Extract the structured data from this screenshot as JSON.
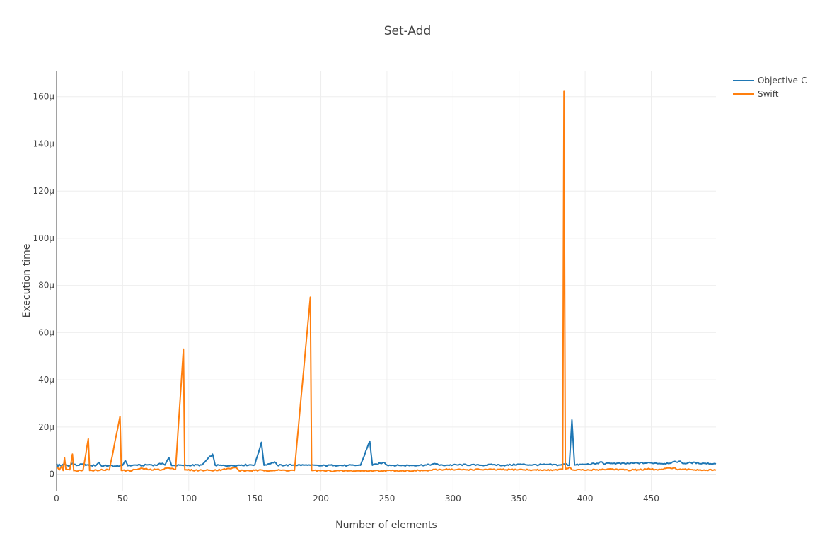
{
  "chart_data": {
    "type": "line",
    "title": "Set-Add",
    "xlabel": "Number of elements",
    "ylabel": "Execution time",
    "xlim": [
      0,
      499
    ],
    "ylim": [
      -7,
      171
    ],
    "x_ticks": [
      0,
      50,
      100,
      150,
      200,
      250,
      300,
      350,
      400,
      450
    ],
    "x_tick_labels": [
      "0",
      "50",
      "100",
      "150",
      "200",
      "250",
      "300",
      "350",
      "400",
      "450"
    ],
    "y_ticks": [
      0,
      20,
      40,
      60,
      80,
      100,
      120,
      140,
      160
    ],
    "y_tick_labels": [
      "0",
      "20µ",
      "40µ",
      "60µ",
      "80µ",
      "100µ",
      "120µ",
      "140µ",
      "160µ"
    ],
    "y_unit": "µ",
    "grid": true,
    "legend_position": "top-right",
    "series": [
      {
        "name": "Objective-C",
        "color": "#1f77b4",
        "baseline": 3.8,
        "points": [
          [
            0,
            4.5
          ],
          [
            1,
            3.4
          ],
          [
            2,
            4.2
          ],
          [
            3,
            3.6
          ],
          [
            6,
            4.2
          ],
          [
            9,
            3.5
          ],
          [
            12,
            4.6
          ],
          [
            15,
            3.7
          ],
          [
            20,
            4.3
          ],
          [
            25,
            3.6
          ],
          [
            30,
            3.8
          ],
          [
            32,
            5.0
          ],
          [
            34,
            3.5
          ],
          [
            40,
            3.7
          ],
          [
            45,
            3.4
          ],
          [
            50,
            3.8
          ],
          [
            52,
            5.8
          ],
          [
            54,
            3.6
          ],
          [
            60,
            3.9
          ],
          [
            65,
            3.7
          ],
          [
            70,
            4.1
          ],
          [
            75,
            3.8
          ],
          [
            80,
            4.6
          ],
          [
            82,
            3.9
          ],
          [
            85,
            7.0
          ],
          [
            87,
            3.7
          ],
          [
            95,
            3.8
          ],
          [
            100,
            3.8
          ],
          [
            110,
            3.9
          ],
          [
            118,
            8.5
          ],
          [
            120,
            3.8
          ],
          [
            130,
            3.6
          ],
          [
            140,
            3.9
          ],
          [
            150,
            4.0
          ],
          [
            155,
            13.5
          ],
          [
            157,
            3.8
          ],
          [
            165,
            5.2
          ],
          [
            167,
            3.8
          ],
          [
            180,
            3.9
          ],
          [
            190,
            3.8
          ],
          [
            200,
            3.6
          ],
          [
            210,
            3.8
          ],
          [
            220,
            3.7
          ],
          [
            230,
            3.8
          ],
          [
            237,
            14.0
          ],
          [
            239,
            3.8
          ],
          [
            248,
            5.0
          ],
          [
            250,
            3.9
          ],
          [
            260,
            3.7
          ],
          [
            270,
            3.8
          ],
          [
            280,
            3.9
          ],
          [
            288,
            4.4
          ],
          [
            290,
            3.8
          ],
          [
            300,
            3.9
          ],
          [
            310,
            4.0
          ],
          [
            320,
            3.8
          ],
          [
            330,
            4.0
          ],
          [
            340,
            3.8
          ],
          [
            350,
            4.2
          ],
          [
            360,
            3.9
          ],
          [
            370,
            4.1
          ],
          [
            380,
            3.9
          ],
          [
            385,
            4.3
          ],
          [
            388,
            3.8
          ],
          [
            390,
            23.0
          ],
          [
            392,
            3.9
          ],
          [
            400,
            4.2
          ],
          [
            410,
            4.5
          ],
          [
            412,
            5.3
          ],
          [
            414,
            4.4
          ],
          [
            420,
            4.6
          ],
          [
            430,
            4.5
          ],
          [
            440,
            4.7
          ],
          [
            450,
            4.8
          ],
          [
            460,
            4.5
          ],
          [
            472,
            5.5
          ],
          [
            474,
            4.5
          ],
          [
            480,
            4.9
          ],
          [
            490,
            4.6
          ],
          [
            499,
            4.4
          ]
        ]
      },
      {
        "name": "Swift",
        "color": "#ff7f0e",
        "baseline": 1.5,
        "points": [
          [
            0,
            3.0
          ],
          [
            2,
            1.8
          ],
          [
            4,
            3.5
          ],
          [
            5,
            1.6
          ],
          [
            6,
            7.0
          ],
          [
            7,
            2.2
          ],
          [
            10,
            1.9
          ],
          [
            12,
            8.5
          ],
          [
            13,
            1.5
          ],
          [
            20,
            1.7
          ],
          [
            24,
            15.0
          ],
          [
            25,
            1.6
          ],
          [
            30,
            1.8
          ],
          [
            40,
            1.9
          ],
          [
            48,
            24.5
          ],
          [
            49,
            1.6
          ],
          [
            55,
            1.5
          ],
          [
            65,
            2.5
          ],
          [
            70,
            1.9
          ],
          [
            80,
            2.0
          ],
          [
            84,
            2.7
          ],
          [
            90,
            2.0
          ],
          [
            96,
            53.0
          ],
          [
            97,
            1.8
          ],
          [
            105,
            1.7
          ],
          [
            115,
            1.7
          ],
          [
            125,
            1.9
          ],
          [
            136,
            2.8
          ],
          [
            138,
            1.5
          ],
          [
            150,
            1.6
          ],
          [
            170,
            1.7
          ],
          [
            180,
            1.6
          ],
          [
            192,
            75.0
          ],
          [
            193,
            1.6
          ],
          [
            200,
            1.5
          ],
          [
            220,
            1.4
          ],
          [
            240,
            1.5
          ],
          [
            260,
            1.5
          ],
          [
            280,
            1.6
          ],
          [
            297,
            2.2
          ],
          [
            300,
            1.9
          ],
          [
            320,
            2.0
          ],
          [
            340,
            1.9
          ],
          [
            350,
            2.0
          ],
          [
            360,
            1.8
          ],
          [
            370,
            1.8
          ],
          [
            383,
            2.0
          ],
          [
            384,
            162.5
          ],
          [
            385,
            2.0
          ],
          [
            388,
            3.0
          ],
          [
            390,
            1.9
          ],
          [
            400,
            1.7
          ],
          [
            420,
            2.2
          ],
          [
            430,
            1.8
          ],
          [
            440,
            1.9
          ],
          [
            449,
            2.2
          ],
          [
            455,
            1.8
          ],
          [
            467,
            2.8
          ],
          [
            470,
            1.9
          ],
          [
            480,
            2.0
          ],
          [
            490,
            1.8
          ],
          [
            499,
            1.7
          ]
        ]
      }
    ]
  }
}
